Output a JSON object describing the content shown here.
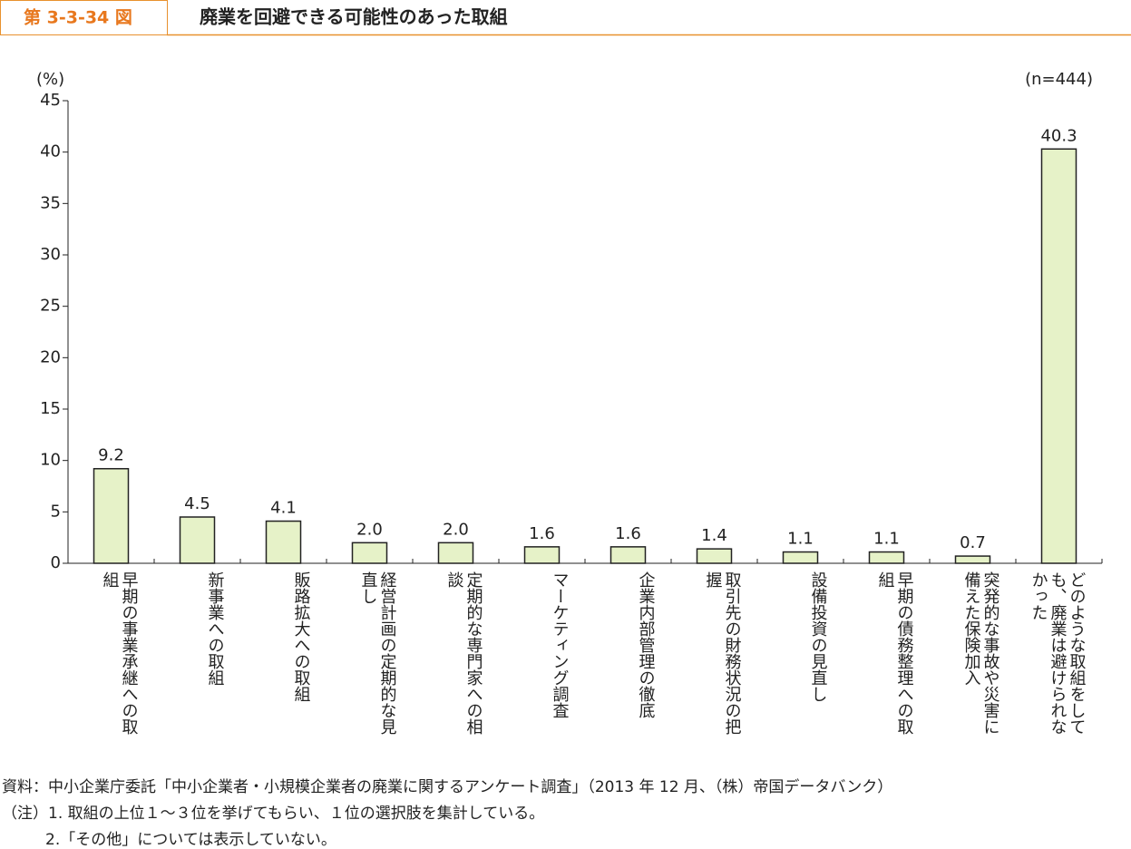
{
  "chart_data": {
    "type": "bar",
    "figure_label": "第 3-3-34 図",
    "title": "廃業を回避できる可能性のあった取組",
    "y_axis_label": "(%)",
    "annotation": "(n=444)",
    "categories": [
      "早期の事業承継への取組",
      "新事業への取組",
      "販路拡大への取組",
      "経営計画の定期的な見直し",
      "定期的な専門家への相談",
      "マーケティング調査",
      "企業内部管理の徹底",
      "取引先の財務状況の把握",
      "設備投資の見直し",
      "早期の債務整理への取組",
      "突発的な事故や災害に備えた保険加入",
      "どのような取組をしても、廃業は避けられなかった"
    ],
    "values": [
      9.2,
      4.5,
      4.1,
      2.0,
      2.0,
      1.6,
      1.6,
      1.4,
      1.1,
      1.1,
      0.7,
      40.3
    ],
    "value_labels": [
      "9.2",
      "4.5",
      "4.1",
      "2.0",
      "2.0",
      "1.6",
      "1.6",
      "1.4",
      "1.1",
      "1.1",
      "0.7",
      "40.3"
    ],
    "color": "#e6f2c8",
    "ylim": [
      0,
      45
    ],
    "yticks": [
      0,
      5,
      10,
      15,
      20,
      25,
      30,
      35,
      40,
      45
    ],
    "source": "資料：中小企業庁委託「中小企業者・小規模企業者の廃業に関するアンケート調査」（2013 年 12 月、（株）帝国データバンク）",
    "notes": [
      "（注）1.  取組の上位１～３位を挙げてもらい、１位の選択肢を集計している。",
      "2.「その他」については表示していない。"
    ]
  }
}
